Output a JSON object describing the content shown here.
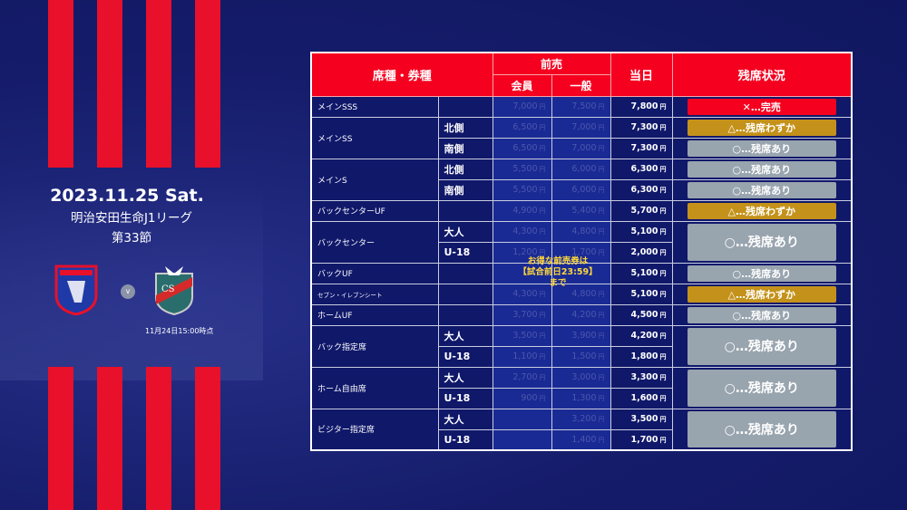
{
  "event": {
    "date": "2023.11.25 Sat.",
    "league": "明治安田生命J1リーグ",
    "section": "第33節",
    "vs": "v",
    "as_of": "11月24日15:00時点",
    "home_logo_text": "FC TOKYO",
    "away_logo_text": "CS CONSADOLE SAPPORO"
  },
  "colors": {
    "red": "#f5001f",
    "navy": "#10186a",
    "gold": "#c4921a",
    "gray": "#98a4ae"
  },
  "table": {
    "headers": {
      "seat": "席種・券種",
      "advance": "前売",
      "member": "会員",
      "general": "一般",
      "day": "当日",
      "status": "残席状況"
    },
    "yen": "円",
    "note": [
      "お得な前売券は",
      "【試合前日23:59】",
      "まで"
    ],
    "groups": [
      {
        "name": "メインSSS",
        "rows": [
          {
            "sub": "",
            "member": "7,000",
            "general": "7,500",
            "day": "7,800"
          }
        ],
        "status": "✕…完売",
        "level": "soldout"
      },
      {
        "name": "メインSS",
        "rows": [
          {
            "sub": "北側",
            "member": "6,500",
            "general": "7,000",
            "day": "7,300",
            "status": "△…残席わずか",
            "level": "few"
          },
          {
            "sub": "南側",
            "member": "6,500",
            "general": "7,000",
            "day": "7,300",
            "status": "○…残席あり",
            "level": "available"
          }
        ]
      },
      {
        "name": "メインS",
        "rows": [
          {
            "sub": "北側",
            "member": "5,500",
            "general": "6,000",
            "day": "6,300",
            "status": "○…残席あり",
            "level": "available"
          },
          {
            "sub": "南側",
            "member": "5,500",
            "general": "6,000",
            "day": "6,300",
            "status": "○…残席あり",
            "level": "available"
          }
        ]
      },
      {
        "name": "バックセンターUF",
        "rows": [
          {
            "sub": "",
            "member": "4,900",
            "general": "5,400",
            "day": "5,700"
          }
        ],
        "status": "△…残席わずか",
        "level": "few"
      },
      {
        "name": "バックセンター",
        "rows": [
          {
            "sub": "大人",
            "member": "4,300",
            "general": "4,800",
            "day": "5,100"
          },
          {
            "sub": "U-18",
            "member": "1,200",
            "general": "1,700",
            "day": "2,000"
          }
        ],
        "status": "○…残席あり",
        "level": "available"
      },
      {
        "name": "バックUF",
        "rows": [
          {
            "sub": "",
            "member": "",
            "general": "",
            "day": "5,100"
          }
        ],
        "status": "○…残席あり",
        "level": "available"
      },
      {
        "name": "セブン・イレブンシート",
        "rows": [
          {
            "sub": "",
            "member": "4,300",
            "general": "4,800",
            "day": "5,100"
          }
        ],
        "status": "△…残席わずか",
        "level": "few"
      },
      {
        "name": "ホームUF",
        "rows": [
          {
            "sub": "",
            "member": "3,700",
            "general": "4,200",
            "day": "4,500"
          }
        ],
        "status": "○…残席あり",
        "level": "available"
      },
      {
        "name": "バック指定席",
        "rows": [
          {
            "sub": "大人",
            "member": "3,500",
            "general": "3,900",
            "day": "4,200"
          },
          {
            "sub": "U-18",
            "member": "1,100",
            "general": "1,500",
            "day": "1,800"
          }
        ],
        "status": "○…残席あり",
        "level": "available"
      },
      {
        "name": "ホーム自由席",
        "rows": [
          {
            "sub": "大人",
            "member": "2,700",
            "general": "3,000",
            "day": "3,300"
          },
          {
            "sub": "U-18",
            "member": "900",
            "general": "1,300",
            "day": "1,600"
          }
        ],
        "status": "○…残席あり",
        "level": "available"
      },
      {
        "name": "ビジター指定席",
        "rows": [
          {
            "sub": "大人",
            "member": "",
            "general": "3,200",
            "day": "3,500"
          },
          {
            "sub": "U-18",
            "member": "",
            "general": "1,400",
            "day": "1,700"
          }
        ],
        "status": "○…残席あり",
        "level": "available"
      }
    ]
  }
}
